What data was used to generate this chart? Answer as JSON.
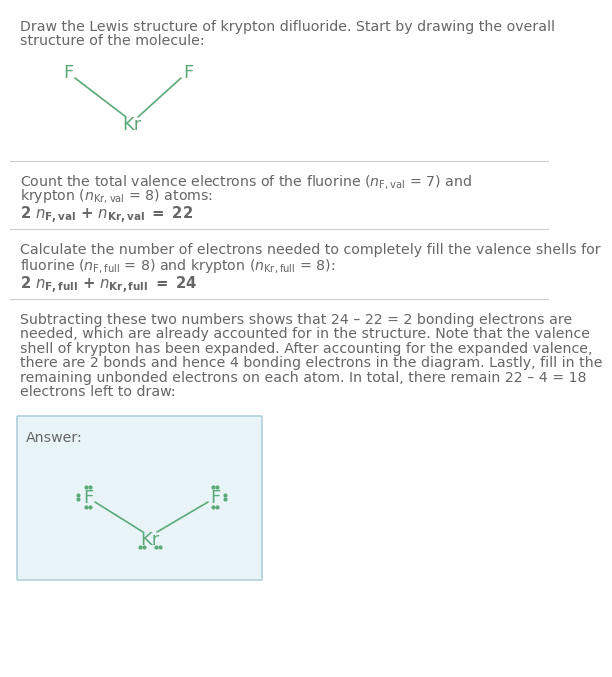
{
  "atom_color": "#5aaa78",
  "bond_color": "#5aaa78",
  "dot_color": "#5aaa78",
  "bg_color": "#ffffff",
  "answer_bg": "#e8f4f8",
  "answer_border": "#b0cfd8",
  "text_color": "#666666",
  "line_color": "#cccccc",
  "title_line1": "Draw the Lewis structure of krypton difluoride. Start by drawing the overall",
  "title_line2": "structure of the molecule:",
  "s1_line1": "Count the total valence electrons of the fluorine (",
  "s1_line2": " = 8) atoms:",
  "s1_eq": "2 n",
  "s2_line1": "Calculate the number of electrons needed to completely fill the valence shells for",
  "s2_line2_a": "fluorine (",
  "s2_line2_b": " = 8) and krypton (",
  "s2_line2_c": " = 8):",
  "s2_eq": "2 n",
  "s3_lines": [
    "Subtracting these two numbers shows that 24 – 22 = 2 bonding electrons are",
    "needed, which are already accounted for in the structure. Note that the valence",
    "shell of krypton has been expanded. After accounting for the expanded valence,",
    "there are 2 bonds and hence 4 bonding electrons in the diagram. Lastly, fill in the",
    "remaining unbonded electrons on each atom. In total, there remain 22 – 4 = 18",
    "electrons left to draw:"
  ],
  "answer_label": "Answer:"
}
